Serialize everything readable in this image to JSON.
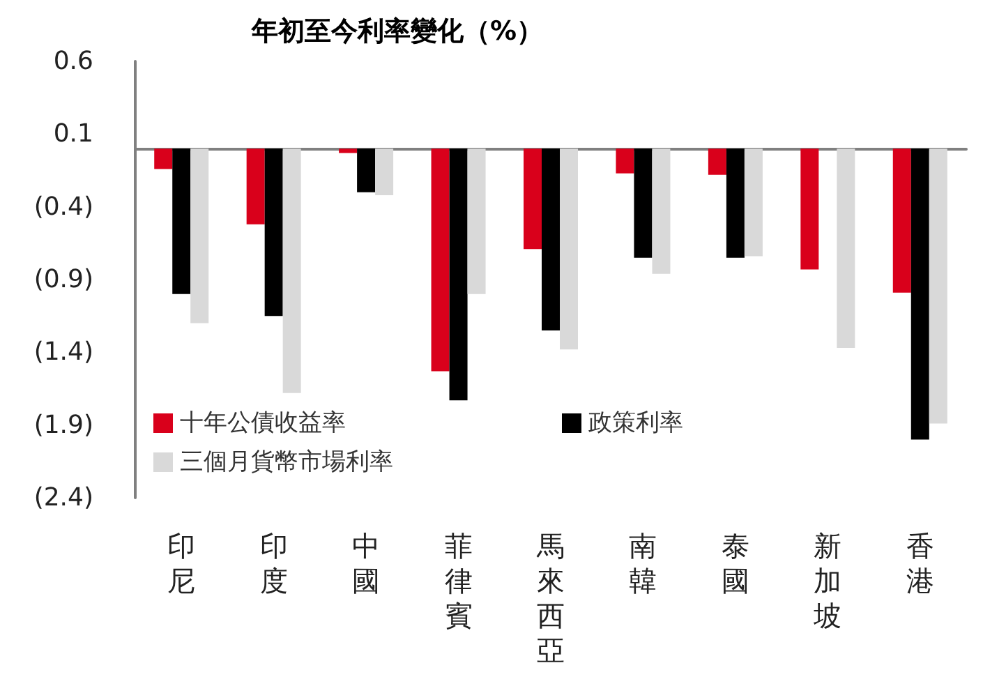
{
  "chart_data": {
    "type": "bar",
    "title": "年初至今利率變化（%）",
    "categories": [
      "印尼",
      "印度",
      "中國",
      "菲律賓",
      "馬來西亞",
      "南韓",
      "泰國",
      "新加坡",
      "香港"
    ],
    "series": [
      {
        "name": "十年公債收益率",
        "color": "#d9001b",
        "values": [
          -0.14,
          -0.52,
          -0.03,
          -1.53,
          -0.69,
          -0.17,
          -0.18,
          -0.83,
          -0.99
        ]
      },
      {
        "name": "政策利率",
        "color": "#000000",
        "values": [
          -1.0,
          -1.15,
          -0.3,
          -1.73,
          -1.25,
          -0.75,
          -0.75,
          null,
          -2.0
        ]
      },
      {
        "name": "三個月貨幣市場利率",
        "color": "#d9d9d9",
        "values": [
          -1.2,
          -1.68,
          -0.32,
          -1.0,
          -1.38,
          -0.86,
          -0.74,
          -1.37,
          -1.89
        ]
      }
    ],
    "ylim": [
      -2.4,
      0.6
    ],
    "yticks": [
      {
        "value": 0.6,
        "label": "0.6"
      },
      {
        "value": 0.1,
        "label": "0.1"
      },
      {
        "value": -0.4,
        "label": "(0.4)"
      },
      {
        "value": -0.9,
        "label": "(0.9)"
      },
      {
        "value": -1.4,
        "label": "(1.4)"
      },
      {
        "value": -1.9,
        "label": "(1.9)"
      },
      {
        "value": -2.4,
        "label": "(2.4)"
      }
    ],
    "grid": false,
    "legend": "bottom left"
  }
}
